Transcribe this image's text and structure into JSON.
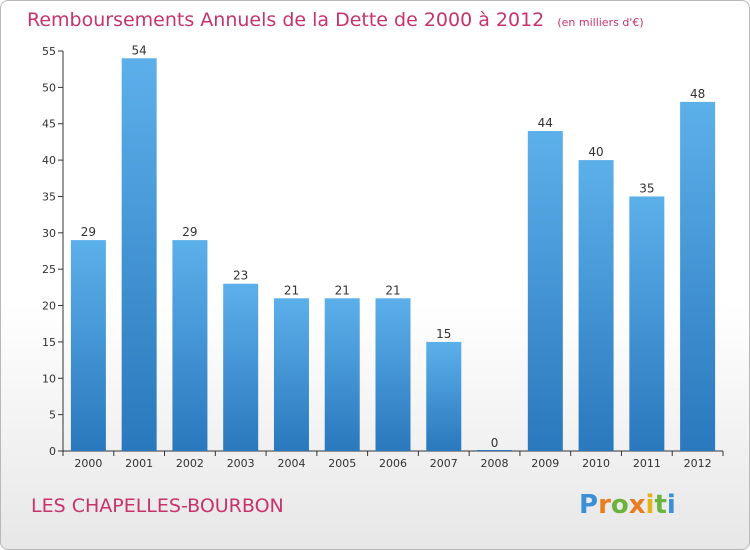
{
  "title": "Remboursements Annuels de la Dette de 2000 à 2012",
  "unit": "(en milliers d'€)",
  "place": "LES CHAPELLES-BOURBON",
  "logo": {
    "text": "Proxiti",
    "letters": [
      "P",
      "r",
      "o",
      "x",
      "i",
      "t",
      "i"
    ]
  },
  "colors": {
    "title": "#c8336e",
    "bar_top": "#5cb0ea",
    "bar_bottom": "#2a78bd",
    "axis": "#333333"
  },
  "chart_data": {
    "type": "bar",
    "categories": [
      "2000",
      "2001",
      "2002",
      "2003",
      "2004",
      "2005",
      "2006",
      "2007",
      "2008",
      "2009",
      "2010",
      "2011",
      "2012"
    ],
    "values": [
      29,
      54,
      29,
      23,
      21,
      21,
      21,
      15,
      0,
      44,
      40,
      35,
      48
    ],
    "ylim": [
      0,
      55
    ],
    "yticks": [
      0,
      5,
      10,
      15,
      20,
      25,
      30,
      35,
      40,
      45,
      50,
      55
    ],
    "data_labels": true,
    "grid": false
  }
}
